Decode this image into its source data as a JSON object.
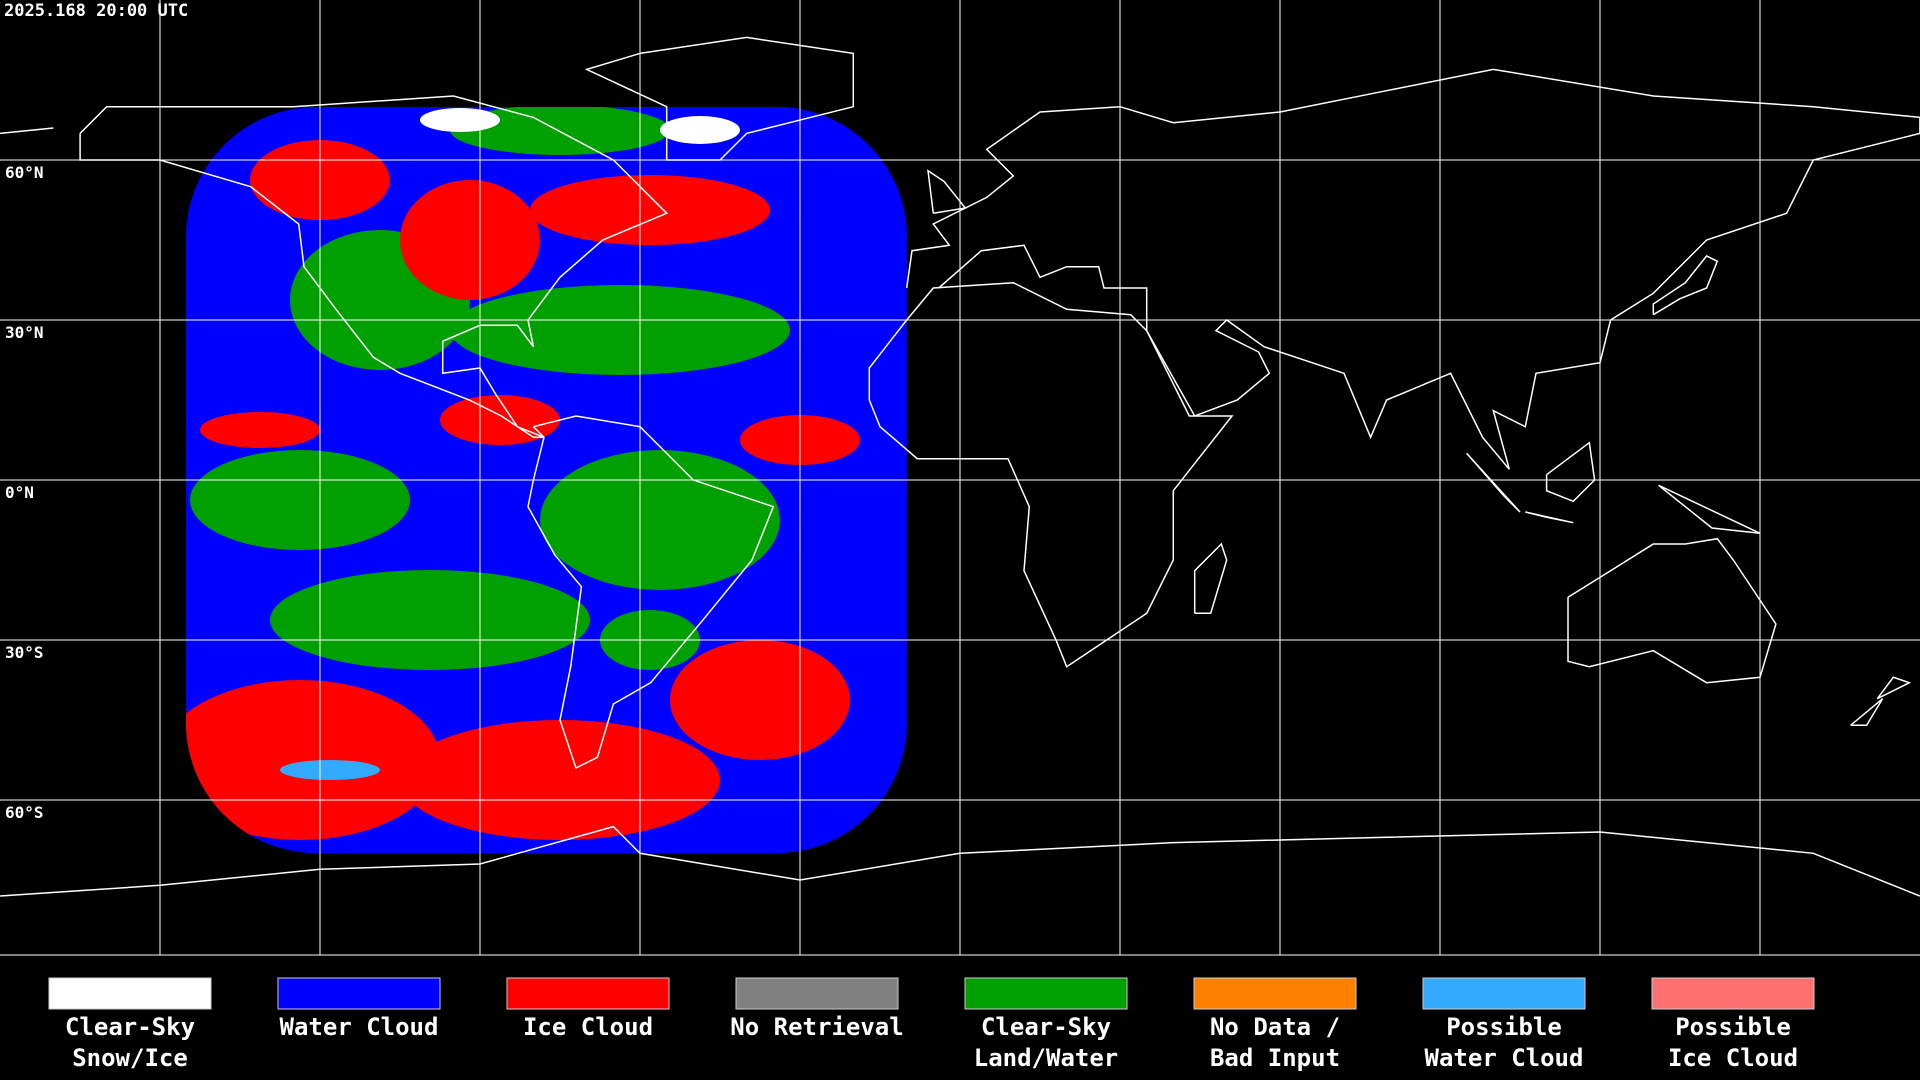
{
  "header": {
    "timestamp": "2025.168 20:00 UTC"
  },
  "map": {
    "latitude_labels": [
      "60°N",
      "30°N",
      "0°N",
      "30°S",
      "60°S"
    ]
  },
  "legend": [
    {
      "color": "#ffffff",
      "label": [
        "Clear-Sky",
        "Snow/Ice"
      ]
    },
    {
      "color": "#0000ff",
      "label": [
        "Water Cloud"
      ]
    },
    {
      "color": "#ff0000",
      "label": [
        "Ice Cloud"
      ]
    },
    {
      "color": "#808080",
      "label": [
        "No Retrieval"
      ]
    },
    {
      "color": "#00a000",
      "label": [
        "Clear-Sky",
        "Land/Water"
      ]
    },
    {
      "color": "#ff8000",
      "label": [
        "No Data /",
        "Bad Input"
      ]
    },
    {
      "color": "#33aaff",
      "label": [
        "Possible",
        "Water Cloud"
      ]
    },
    {
      "color": "#ff7070",
      "label": [
        "Possible",
        "Ice Cloud"
      ]
    }
  ]
}
